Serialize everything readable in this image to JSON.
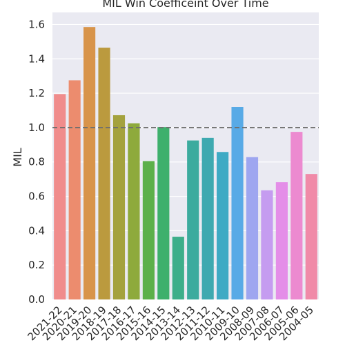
{
  "chart_data": {
    "type": "bar",
    "title": "MIL Win Coefficeint Over Time",
    "xlabel": "",
    "ylabel": "MIL",
    "ylim": [
      0,
      1.67
    ],
    "yticks": [
      "0.0",
      "0.2",
      "0.4",
      "0.6",
      "0.8",
      "1.0",
      "1.2",
      "1.4",
      "1.6"
    ],
    "reference_line": 1.0,
    "grid": true,
    "categories": [
      "2021-22",
      "2020-21",
      "2019-20",
      "2018-19",
      "2017-18",
      "2016-17",
      "2015-16",
      "2014-15",
      "2013-14",
      "2012-13",
      "2011-12",
      "2010-11",
      "2009-10",
      "2008-09",
      "2007-08",
      "2006-07",
      "2005-06",
      "2004-05"
    ],
    "values": [
      1.195,
      1.275,
      1.585,
      1.465,
      1.072,
      1.025,
      0.805,
      1.003,
      0.365,
      0.925,
      0.94,
      0.858,
      1.12,
      0.828,
      0.635,
      0.682,
      0.975,
      0.73
    ],
    "colors": [
      "#f08c8c",
      "#ec8c6e",
      "#d8944a",
      "#bb9a3e",
      "#a4a23e",
      "#8eaa3c",
      "#5cb04a",
      "#3eb06c",
      "#3dae8a",
      "#3cab9e",
      "#3ea9b0",
      "#3eaac4",
      "#58aae6",
      "#9ea6f0",
      "#c59cf0",
      "#e48ee8",
      "#ec8ad0",
      "#f08aa8"
    ]
  }
}
